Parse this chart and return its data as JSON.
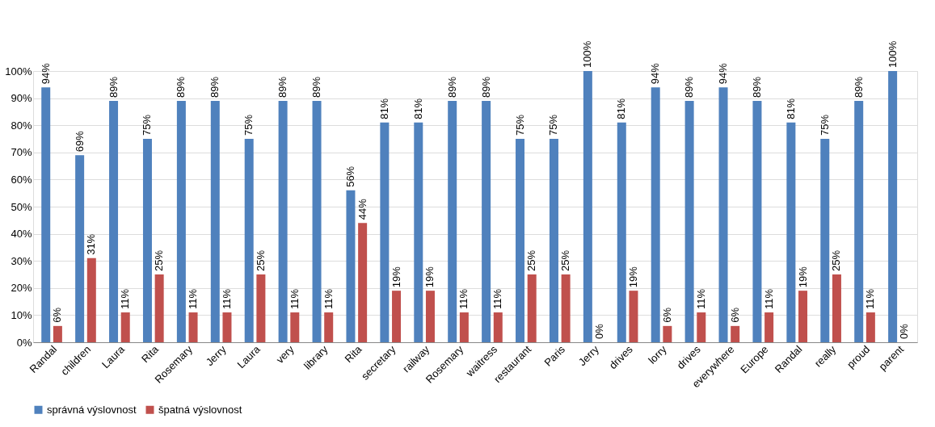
{
  "chart_data": {
    "type": "bar",
    "categories": [
      "Randal",
      "children",
      "Laura",
      "Rita",
      "Rosemary",
      "Jerry",
      "Laura",
      "very",
      "library",
      "Rita",
      "secretary",
      "railway",
      "Rosemary",
      "waitress",
      "restaurant",
      "Paris",
      "Jerry",
      "drives",
      "lorry",
      "drives",
      "everywhere",
      "Europe",
      "Randal",
      "really",
      "proud",
      "parent"
    ],
    "series": [
      {
        "name": "správná výslovnost",
        "color": "#4f81bd",
        "values": [
          94,
          69,
          89,
          75,
          89,
          89,
          75,
          89,
          89,
          56,
          81,
          81,
          89,
          89,
          75,
          75,
          100,
          81,
          94,
          89,
          94,
          89,
          81,
          75,
          89,
          100
        ],
        "value_labels": [
          "94%",
          "69%",
          "89%",
          "75%",
          "89%",
          "89%",
          "75%",
          "89%",
          "89%",
          "56%",
          "81%",
          "81%",
          "89%",
          "89%",
          "75%",
          "75%",
          "100%",
          "81%",
          "94%",
          "89%",
          "94%",
          "89%",
          "81%",
          "75%",
          "89%",
          "100%"
        ]
      },
      {
        "name": "špatná výslovnost",
        "color": "#c0504d",
        "values": [
          6,
          31,
          11,
          25,
          11,
          11,
          25,
          11,
          11,
          44,
          19,
          19,
          11,
          11,
          25,
          25,
          0,
          19,
          6,
          11,
          6,
          11,
          19,
          25,
          11,
          0
        ],
        "value_labels": [
          "6%",
          "31%",
          "11%",
          "25%",
          "11%",
          "11%",
          "25%",
          "11%",
          "11%",
          "44%",
          "19%",
          "19%",
          "11%",
          "11%",
          "25%",
          "25%",
          "0%",
          "19%",
          "6%",
          "11%",
          "6%",
          "11%",
          "19%",
          "25%",
          "11%",
          "0%"
        ]
      }
    ],
    "ylim": [
      0,
      100
    ],
    "yticks": [
      {
        "value": 0,
        "label": "0%"
      },
      {
        "value": 10,
        "label": "10%"
      },
      {
        "value": 20,
        "label": "20%"
      },
      {
        "value": 30,
        "label": "30%"
      },
      {
        "value": 40,
        "label": "40%"
      },
      {
        "value": 50,
        "label": "50%"
      },
      {
        "value": 60,
        "label": "60%"
      },
      {
        "value": 70,
        "label": "70%"
      },
      {
        "value": 80,
        "label": "80%"
      },
      {
        "value": 90,
        "label": "90%"
      },
      {
        "value": 100,
        "label": "100%"
      }
    ],
    "grid": "y",
    "legend": "bottom"
  }
}
